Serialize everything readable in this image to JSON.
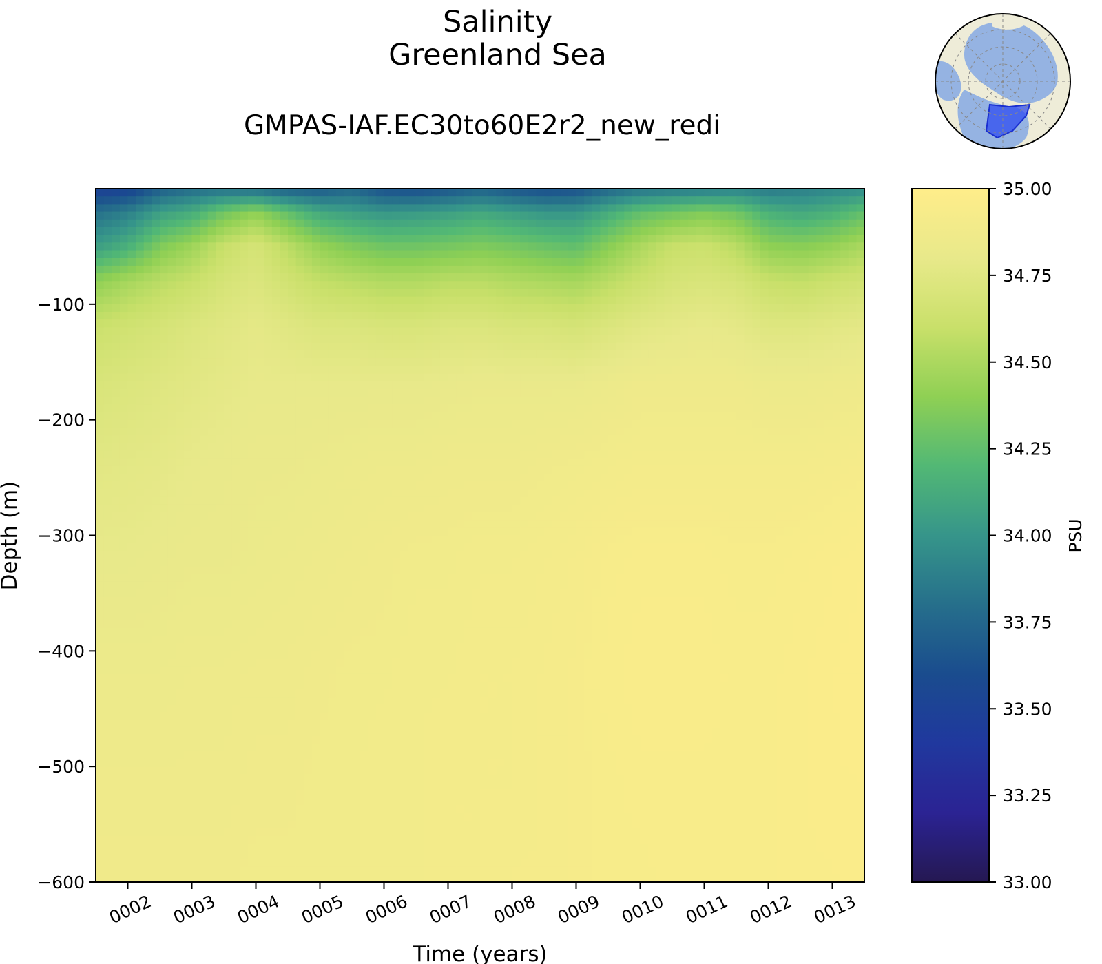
{
  "title": "Salinity",
  "region": "Greenland Sea",
  "subtitle": "GMPAS-IAF.EC30to60E2r2_new_redi",
  "chart_data": {
    "type": "heatmap",
    "title": "Salinity Greenland Sea",
    "subtitle": "GMPAS-IAF.EC30to60E2r2_new_redi",
    "xlabel": "Time (years)",
    "ylabel": "Depth (m)",
    "x_ticks": [
      "0002",
      "0003",
      "0004",
      "0005",
      "0006",
      "0007",
      "0008",
      "0009",
      "0010",
      "0011",
      "0012",
      "0013"
    ],
    "x_range": [
      1.5,
      13.5
    ],
    "y_ticks": [
      -100,
      -200,
      -300,
      -400,
      -500,
      -600
    ],
    "y_tick_labels": [
      "−100",
      "−200",
      "−300",
      "−400",
      "−500",
      "−600"
    ],
    "ylim": [
      -600,
      0
    ],
    "grid": false,
    "colorbar": {
      "label": "PSU",
      "vmin": 33.0,
      "vmax": 35.0,
      "ticks": [
        "35.00",
        "34.75",
        "34.50",
        "34.25",
        "34.00",
        "33.75",
        "33.50",
        "33.25",
        "33.00"
      ],
      "colormap": "YlGnBu_r",
      "colors": [
        "#ffed8a",
        "#e8e98a",
        "#c9e06a",
        "#8fd054",
        "#52b875",
        "#36958a",
        "#266f8b",
        "#1a4c8e",
        "#20389e",
        "#2b2393",
        "#251852"
      ]
    },
    "x_years": [
      1.5,
      2,
      2.5,
      3,
      3.5,
      4,
      4.5,
      5,
      5.5,
      6,
      6.5,
      7,
      7.5,
      8,
      8.5,
      9,
      9.5,
      10,
      10.5,
      11,
      11.5,
      12,
      12.5,
      13,
      13.5
    ],
    "depths": [
      0,
      -20,
      -50,
      -80,
      -120,
      -170,
      -240,
      -320,
      -420,
      -520,
      -600
    ],
    "values": [
      [
        33.48,
        33.5,
        33.7,
        33.78,
        33.8,
        33.78,
        33.7,
        33.68,
        33.75,
        33.62,
        33.6,
        33.65,
        33.72,
        33.65,
        33.6,
        33.62,
        33.75,
        33.82,
        33.85,
        33.86,
        33.9,
        33.85,
        33.88,
        33.92,
        33.95
      ],
      [
        33.8,
        33.88,
        34.05,
        34.12,
        34.3,
        34.4,
        34.25,
        34.1,
        34.05,
        34.0,
        34.02,
        34.05,
        34.1,
        34.05,
        34.0,
        34.0,
        34.12,
        34.25,
        34.3,
        34.35,
        34.3,
        34.15,
        34.1,
        34.15,
        34.25
      ],
      [
        34.05,
        34.15,
        34.35,
        34.45,
        34.6,
        34.68,
        34.55,
        34.42,
        34.35,
        34.3,
        34.3,
        34.32,
        34.35,
        34.32,
        34.28,
        34.25,
        34.38,
        34.5,
        34.6,
        34.62,
        34.55,
        34.4,
        34.38,
        34.42,
        34.5
      ],
      [
        34.4,
        34.48,
        34.55,
        34.6,
        34.68,
        34.72,
        34.65,
        34.58,
        34.55,
        34.52,
        34.52,
        34.55,
        34.55,
        34.52,
        34.5,
        34.48,
        34.55,
        34.62,
        34.68,
        34.7,
        34.68,
        34.6,
        34.58,
        34.62,
        34.65
      ],
      [
        34.62,
        34.65,
        34.68,
        34.72,
        34.75,
        34.78,
        34.75,
        34.72,
        34.72,
        34.7,
        34.7,
        34.72,
        34.72,
        34.7,
        34.7,
        34.68,
        34.72,
        34.76,
        34.78,
        34.8,
        34.78,
        34.74,
        34.74,
        34.76,
        34.78
      ],
      [
        34.7,
        34.72,
        34.74,
        34.76,
        34.78,
        34.8,
        34.8,
        34.8,
        34.8,
        34.8,
        34.8,
        34.81,
        34.82,
        34.82,
        34.82,
        34.82,
        34.84,
        34.86,
        34.86,
        34.86,
        34.86,
        34.84,
        34.84,
        34.85,
        34.86
      ],
      [
        34.76,
        34.77,
        34.78,
        34.8,
        34.81,
        34.82,
        34.82,
        34.83,
        34.84,
        34.85,
        34.85,
        34.86,
        34.86,
        34.86,
        34.87,
        34.88,
        34.89,
        34.9,
        34.9,
        34.9,
        34.9,
        34.9,
        34.9,
        34.91,
        34.92
      ],
      [
        34.8,
        34.8,
        34.81,
        34.82,
        34.82,
        34.83,
        34.84,
        34.85,
        34.86,
        34.87,
        34.88,
        34.88,
        34.89,
        34.89,
        34.9,
        34.91,
        34.93,
        34.94,
        34.94,
        34.94,
        34.93,
        34.93,
        34.94,
        34.95,
        34.96
      ],
      [
        34.84,
        34.84,
        34.84,
        34.85,
        34.85,
        34.86,
        34.86,
        34.87,
        34.88,
        34.88,
        34.89,
        34.89,
        34.9,
        34.9,
        34.91,
        34.92,
        34.94,
        34.95,
        34.95,
        34.95,
        34.94,
        34.94,
        34.95,
        34.96,
        34.97
      ],
      [
        34.86,
        34.86,
        34.86,
        34.86,
        34.86,
        34.87,
        34.87,
        34.88,
        34.88,
        34.89,
        34.89,
        34.9,
        34.9,
        34.9,
        34.91,
        34.92,
        34.93,
        34.94,
        34.94,
        34.94,
        34.94,
        34.94,
        34.95,
        34.96,
        34.96
      ],
      [
        34.87,
        34.87,
        34.87,
        34.87,
        34.87,
        34.88,
        34.88,
        34.88,
        34.88,
        34.89,
        34.89,
        34.9,
        34.9,
        34.91,
        34.91,
        34.92,
        34.93,
        34.93,
        34.94,
        34.94,
        34.94,
        34.94,
        34.95,
        34.95,
        34.96
      ]
    ]
  },
  "inset_map": {
    "projection": "north-polar-stereographic",
    "ocean_color": "#95b3e2",
    "land_color": "#eeecd8",
    "region_color": "#2f4cf0"
  }
}
